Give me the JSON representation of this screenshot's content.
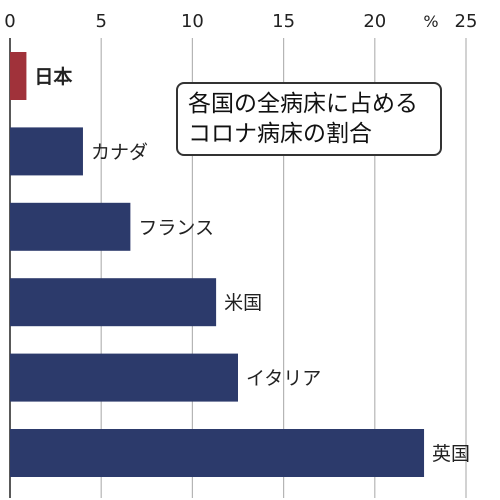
{
  "chart_data": {
    "type": "bar",
    "orientation": "horizontal",
    "title_lines": [
      "各国の全病床に占める",
      "コロナ病床の割合"
    ],
    "unit": "%",
    "xlim": [
      0,
      25
    ],
    "xticks": [
      "0",
      "5",
      "10",
      "15",
      "20",
      "25"
    ],
    "grid": true,
    "categories": [
      "日本",
      "カナダ",
      "フランス",
      "米国",
      "イタリア",
      "英国"
    ],
    "values": [
      0.9,
      4.0,
      6.6,
      11.3,
      12.5,
      22.7
    ],
    "colors": {
      "highlight": "#a0323a",
      "bar": "#2c3a6b",
      "grid": "#b5b5b5"
    },
    "highlight_category": "日本"
  }
}
